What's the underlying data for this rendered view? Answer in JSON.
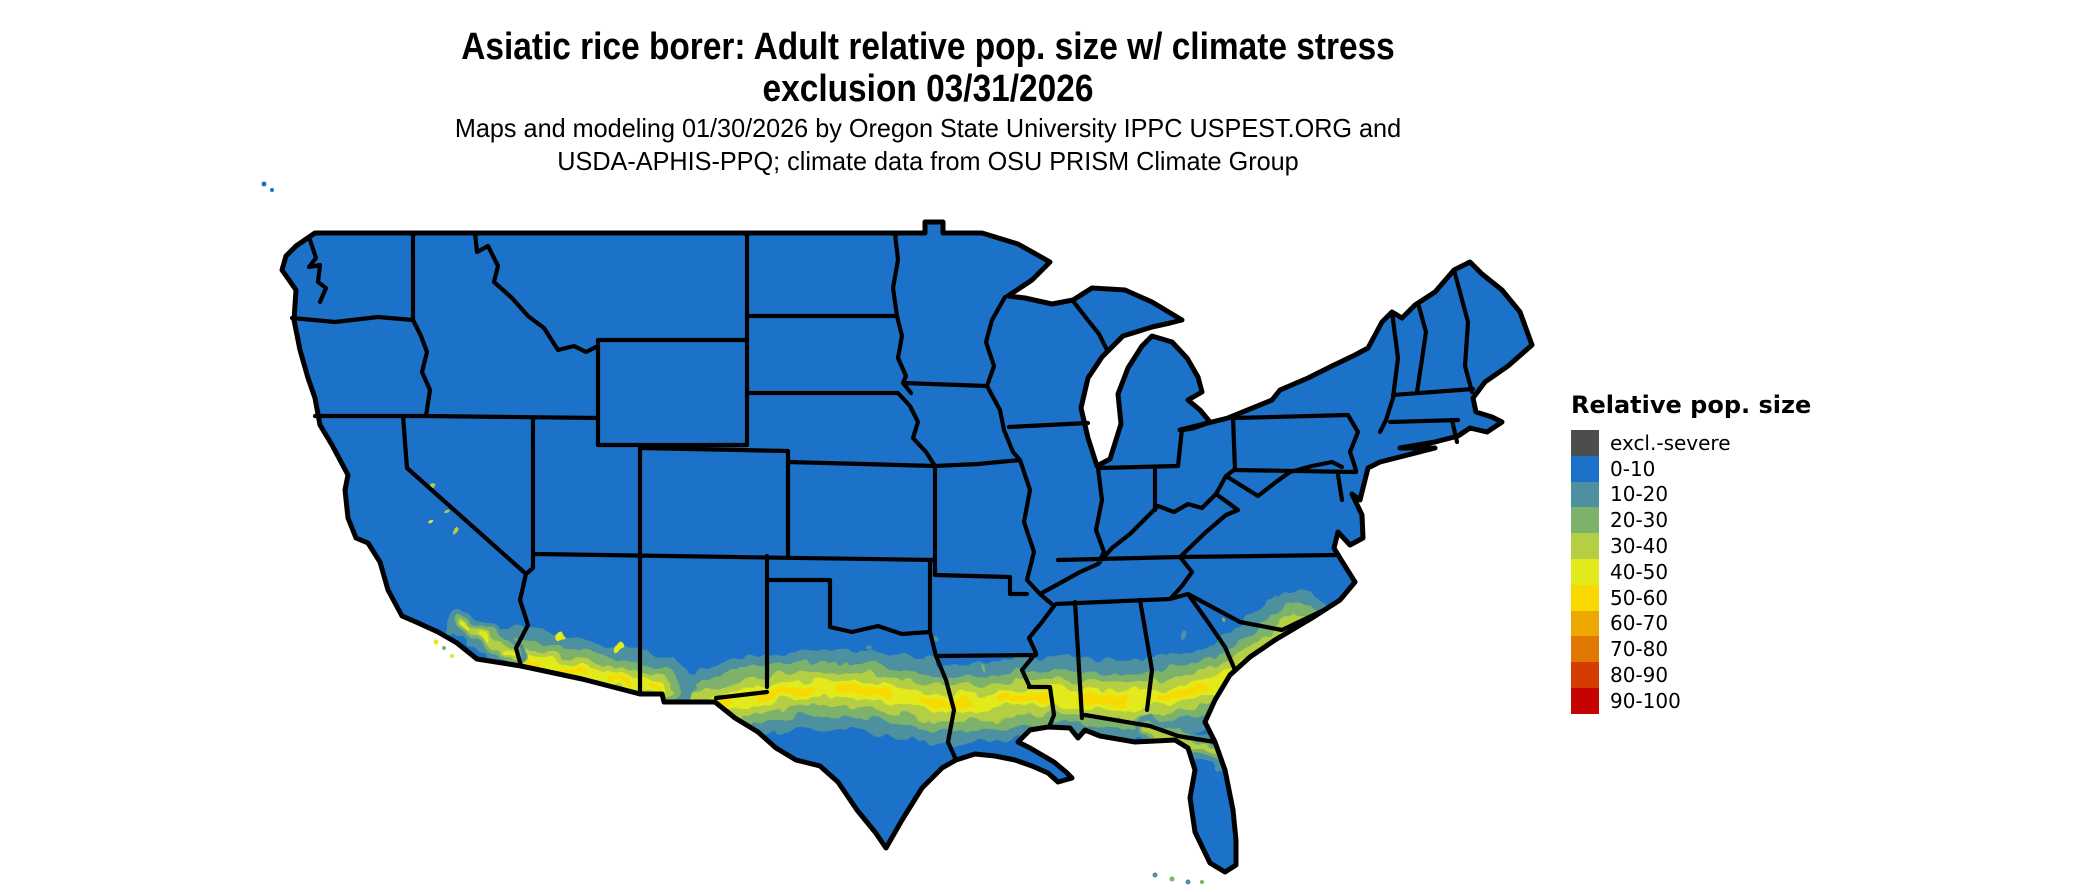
{
  "title": {
    "line1": "Asiatic rice borer: Adult relative pop. size w/ climate stress",
    "line2": "exclusion 03/31/2026"
  },
  "subtitle": {
    "line1": "Maps and modeling 01/30/2026 by Oregon State University IPPC USPEST.ORG and",
    "line2": "USDA-APHIS-PPQ; climate data from OSU PRISM Climate Group"
  },
  "map": {
    "region": "Contiguous United States",
    "colors": {
      "background": "#ffffff",
      "state_border": "#000000",
      "excl_severe": "#4d4d4d",
      "c0_10": "#1b72c8",
      "c10_20": "#4d91a0",
      "c20_30": "#7cb269",
      "c30_40": "#b5cf45",
      "c40_50": "#e2ea1c",
      "c50_60": "#f8da00",
      "c60_70": "#eca800",
      "c70_80": "#df7700",
      "c80_90": "#d43c00",
      "c90_100": "#c60303"
    }
  },
  "legend": {
    "title": "Relative pop. size",
    "items": [
      {
        "label": "excl.-severe",
        "color": "#4d4d4d"
      },
      {
        "label": "0-10",
        "color": "#1b72c8"
      },
      {
        "label": "10-20",
        "color": "#4d91a0"
      },
      {
        "label": "20-30",
        "color": "#7cb269"
      },
      {
        "label": "30-40",
        "color": "#b5cf45"
      },
      {
        "label": "40-50",
        "color": "#e2ea1c"
      },
      {
        "label": "50-60",
        "color": "#f8da00"
      },
      {
        "label": "60-70",
        "color": "#eca800"
      },
      {
        "label": "70-80",
        "color": "#df7700"
      },
      {
        "label": "80-90",
        "color": "#d43c00"
      },
      {
        "label": "90-100",
        "color": "#c60303"
      }
    ]
  }
}
